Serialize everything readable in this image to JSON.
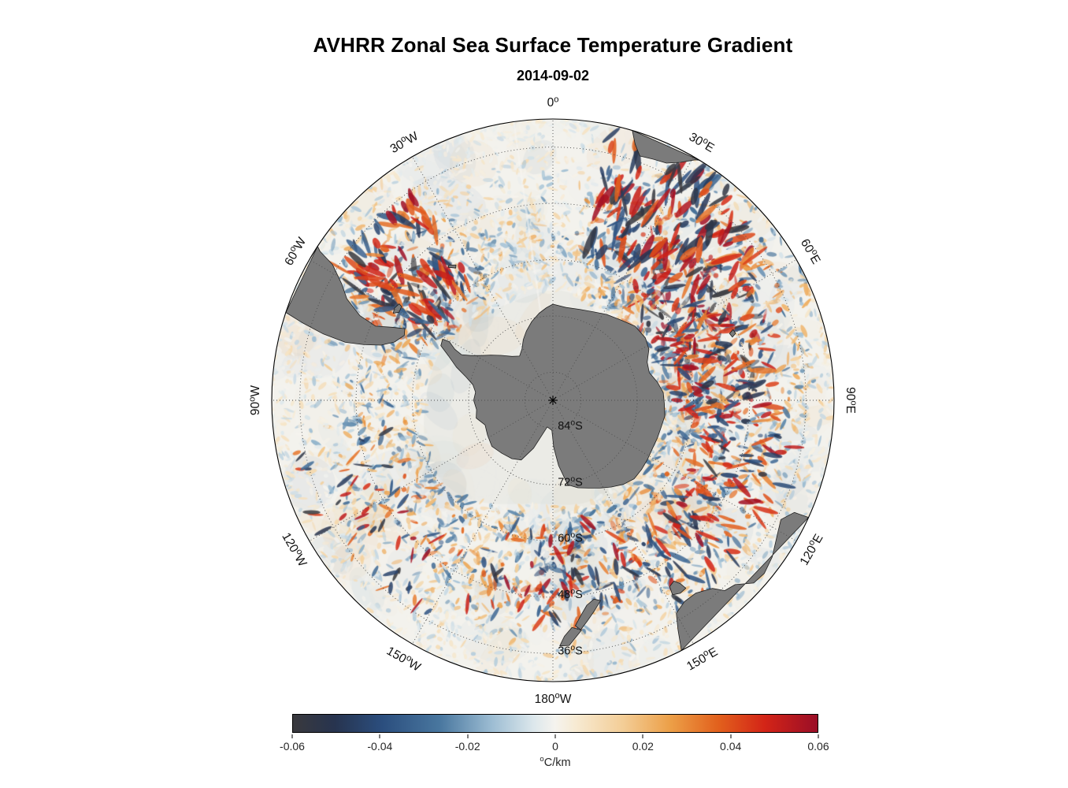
{
  "header": {
    "title": "AVHRR Zonal Sea Surface Temperature Gradient",
    "subtitle": "2014-09-02"
  },
  "chart_data": {
    "type": "heatmap",
    "chart_kind": "south polar stereographic map of a scalar field",
    "title": "AVHRR Zonal Sea Surface Temperature Gradient",
    "date": "2014-09-02",
    "field": "zonal sea surface temperature gradient",
    "units": "°C/km",
    "value_range": [
      -0.06,
      0.06
    ],
    "radial_axis": {
      "pole_latitude_deg": -90,
      "edge_latitude_deg": -30
    },
    "colorbar": {
      "label": "°C/km",
      "orientation": "horizontal",
      "min": -0.06,
      "max": 0.06,
      "ticks": [
        "-0.06",
        "-0.04",
        "-0.02",
        "0",
        "0.02",
        "0.04",
        "0.06"
      ],
      "stops": [
        {
          "t": 0.0,
          "color": "#39393d"
        },
        {
          "t": 0.08,
          "color": "#27344f"
        },
        {
          "t": 0.17,
          "color": "#2b4e7e"
        },
        {
          "t": 0.28,
          "color": "#49779f"
        },
        {
          "t": 0.38,
          "color": "#9dbdd3"
        },
        {
          "t": 0.46,
          "color": "#dde8ec"
        },
        {
          "t": 0.5,
          "color": "#f5f3ee"
        },
        {
          "t": 0.54,
          "color": "#f7ead2"
        },
        {
          "t": 0.63,
          "color": "#f3cd96"
        },
        {
          "t": 0.72,
          "color": "#ec9f47"
        },
        {
          "t": 0.81,
          "color": "#e2611d"
        },
        {
          "t": 0.9,
          "color": "#d32417"
        },
        {
          "t": 1.0,
          "color": "#9a0e27"
        }
      ]
    },
    "grid": {
      "latitude_circles_fractions": [
        0.1,
        0.3,
        0.5,
        0.7,
        0.9
      ],
      "latitude_labels": [
        {
          "text": "84°S",
          "lat": -84,
          "radius_fraction": 0.1
        },
        {
          "text": "72°S",
          "lat": -72,
          "radius_fraction": 0.3
        },
        {
          "text": "60°S",
          "lat": -60,
          "radius_fraction": 0.5
        },
        {
          "text": "48°S",
          "lat": -48,
          "radius_fraction": 0.7
        },
        {
          "text": "36°S",
          "lat": -36,
          "radius_fraction": 0.9
        }
      ],
      "longitude_labels": [
        {
          "text": "0°",
          "azimuth_deg": 0
        },
        {
          "text": "30°E",
          "azimuth_deg": 30
        },
        {
          "text": "60°E",
          "azimuth_deg": 60
        },
        {
          "text": "90°E",
          "azimuth_deg": 90
        },
        {
          "text": "120°E",
          "azimuth_deg": 120
        },
        {
          "text": "150°E",
          "azimuth_deg": 150
        },
        {
          "text": "180°W",
          "azimuth_deg": 180
        },
        {
          "text": "150°W",
          "azimuth_deg": 210
        },
        {
          "text": "120°W",
          "azimuth_deg": 240
        },
        {
          "text": "90°W",
          "azimuth_deg": 270
        },
        {
          "text": "60°W",
          "azimuth_deg": 300
        },
        {
          "text": "30°W",
          "azimuth_deg": 330
        }
      ]
    },
    "geography": {
      "land_color": "#7b7b7b",
      "ice_color": "#ebebe6",
      "ocean_color": "#f3f2ed",
      "polygons": [
        {
          "name": "antarctica",
          "points": [
            [
              0,
              69.5
            ],
            [
              8,
              70
            ],
            [
              16,
              69.8
            ],
            [
              24,
              69.3
            ],
            [
              32,
              68.4
            ],
            [
              40,
              67.6
            ],
            [
              48,
              66.4
            ],
            [
              56,
              66.2
            ],
            [
              62,
              66.8
            ],
            [
              68,
              68.3
            ],
            [
              74,
              68.6
            ],
            [
              80,
              67.4
            ],
            [
              86,
              66.4
            ],
            [
              92,
              66.2
            ],
            [
              98,
              65.9
            ],
            [
              104,
              66.2
            ],
            [
              110,
              66.3
            ],
            [
              116,
              66.4
            ],
            [
              122,
              66.2
            ],
            [
              128,
              66.0
            ],
            [
              134,
              65.9
            ],
            [
              140,
              66.6
            ],
            [
              146,
              67.7
            ],
            [
              152,
              68.8
            ],
            [
              158,
              69.8
            ],
            [
              164,
              70.6
            ],
            [
              170,
              71.7
            ],
            [
              175,
              76
            ],
            [
              179,
              80
            ],
            [
              -178,
              83.6
            ],
            [
              -168,
              84.2
            ],
            [
              -158,
              79
            ],
            [
              -152,
              75.6
            ],
            [
              -145,
              74.8
            ],
            [
              -136,
              74.3
            ],
            [
              -127,
              73.7
            ],
            [
              -118,
              74.2
            ],
            [
              -110,
              74.6
            ],
            [
              -103,
              73.2
            ],
            [
              -97,
              73.6
            ],
            [
              -90,
              73.1
            ],
            [
              -84,
              73.4
            ],
            [
              -79,
              72.6
            ],
            [
              -75,
              70.8
            ],
            [
              -71,
              68.2
            ],
            [
              -67,
              65.8
            ],
            [
              -64,
              63.4
            ],
            [
              -61,
              63.1
            ],
            [
              -60.5,
              64.6
            ],
            [
              -62.5,
              66.4
            ],
            [
              -63.5,
              68.2
            ],
            [
              -61.5,
              70
            ],
            [
              -58,
              72
            ],
            [
              -54,
              73.6
            ],
            [
              -49,
              75.4
            ],
            [
              -43,
              77.2
            ],
            [
              -37,
              78.2
            ],
            [
              -31,
              77.2
            ],
            [
              -26,
              75.6
            ],
            [
              -21,
              74.2
            ],
            [
              -15,
              72.6
            ],
            [
              -9,
              71.2
            ],
            [
              -4,
              70.2
            ]
          ]
        },
        {
          "name": "south-america",
          "points": [
            [
              -71.8,
              30
            ],
            [
              -72.8,
              34
            ],
            [
              -73.9,
              39
            ],
            [
              -74.4,
              44
            ],
            [
              -73.6,
              48
            ],
            [
              -72.2,
              51.5
            ],
            [
              -69.8,
              54
            ],
            [
              -66.4,
              55.4
            ],
            [
              -64.2,
              54.9
            ],
            [
              -65.6,
              52.3
            ],
            [
              -67.3,
              49
            ],
            [
              -66.3,
              45
            ],
            [
              -63.8,
              41
            ],
            [
              -61.2,
              38.6
            ],
            [
              -58.4,
              34.8
            ],
            [
              -57.4,
              31
            ],
            [
              -56.8,
              30
            ]
          ]
        },
        {
          "name": "africa",
          "points": [
            [
              16.4,
              30
            ],
            [
              17.8,
              32.6
            ],
            [
              19.6,
              34.7
            ],
            [
              22.6,
              34.3
            ],
            [
              25.6,
              33.9
            ],
            [
              28.2,
              32.4
            ],
            [
              30.6,
              30.4
            ],
            [
              31.4,
              30
            ]
          ]
        },
        {
          "name": "australia",
          "points": [
            [
              114.6,
              30
            ],
            [
              114.9,
              33.2
            ],
            [
              117.6,
              35.1
            ],
            [
              121.5,
              34
            ],
            [
              125.5,
              32.5
            ],
            [
              129.3,
              31.7
            ],
            [
              132.3,
              32.1
            ],
            [
              135.3,
              34.7
            ],
            [
              137.9,
              35.3
            ],
            [
              139.7,
              37.4
            ],
            [
              143.4,
              38.8
            ],
            [
              146.8,
              38.7
            ],
            [
              149.9,
              37.5
            ],
            [
              151.4,
              34.2
            ],
            [
              152.6,
              30.6
            ],
            [
              152.8,
              30
            ]
          ]
        },
        {
          "name": "tasmania",
          "points": [
            [
              144.7,
              40.9
            ],
            [
              145.2,
              42.4
            ],
            [
              146.2,
              43.6
            ],
            [
              147.9,
              43.1
            ],
            [
              148.4,
              41.3
            ],
            [
              146.6,
              40.7
            ]
          ]
        },
        {
          "name": "new-zealand-south-island",
          "points": [
            [
              166.6,
              46.1
            ],
            [
              168.3,
              46.7
            ],
            [
              170.6,
              45.7
            ],
            [
              172.7,
              43.6
            ],
            [
              174.3,
              41.7
            ],
            [
              173.1,
              40.7
            ],
            [
              171.2,
              42.3
            ],
            [
              168.9,
              44.2
            ]
          ]
        },
        {
          "name": "new-zealand-north-island",
          "points": [
            [
              172.9,
              40.6
            ],
            [
              175.2,
              41.4
            ],
            [
              177.2,
              39.6
            ],
            [
              178.4,
              37.6
            ],
            [
              176.2,
              37.6
            ],
            [
              174.4,
              39.3
            ]
          ]
        },
        {
          "name": "falkland-islands",
          "points": [
            [
              -61.4,
              51.2
            ],
            [
              -60.2,
              52.2
            ],
            [
              -58.2,
              52
            ],
            [
              -57.9,
              51.3
            ],
            [
              -59.8,
              50.9
            ]
          ]
        },
        {
          "name": "south-georgia",
          "points": [
            [
              -38.2,
              53.9
            ],
            [
              -36.3,
              55
            ],
            [
              -35.6,
              54.5
            ],
            [
              -37.6,
              53.6
            ]
          ]
        },
        {
          "name": "kerguelen",
          "points": [
            [
              68.6,
              48.7
            ],
            [
              69.3,
              49.7
            ],
            [
              70.6,
              49.4
            ],
            [
              69.9,
              48.5
            ]
          ]
        }
      ]
    }
  }
}
